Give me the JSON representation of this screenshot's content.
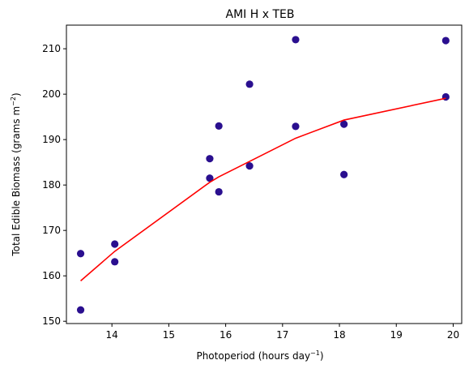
{
  "chart_data": {
    "type": "scatter",
    "title": "AMI H x TEB",
    "xlabel": "Photoperiod (hours day",
    "xlabel_sup": "−1",
    "xlabel_end": ")",
    "ylabel": "Total Edible Biomass (grams m",
    "ylabel_sup": "−2",
    "ylabel_end": ")",
    "xlim": [
      13.2,
      20.15
    ],
    "ylim": [
      149.5,
      215.2
    ],
    "xticks": [
      14,
      15,
      16,
      17,
      18,
      19,
      20
    ],
    "yticks": [
      150,
      160,
      170,
      180,
      190,
      200,
      210
    ],
    "points": [
      {
        "x": 13.45,
        "y": 164.9
      },
      {
        "x": 13.45,
        "y": 152.5
      },
      {
        "x": 14.05,
        "y": 167.0
      },
      {
        "x": 14.05,
        "y": 163.1
      },
      {
        "x": 15.72,
        "y": 185.8
      },
      {
        "x": 15.72,
        "y": 181.5
      },
      {
        "x": 15.88,
        "y": 193.0
      },
      {
        "x": 15.88,
        "y": 178.5
      },
      {
        "x": 16.42,
        "y": 202.2
      },
      {
        "x": 16.42,
        "y": 184.2
      },
      {
        "x": 17.23,
        "y": 212.0
      },
      {
        "x": 17.23,
        "y": 192.9
      },
      {
        "x": 18.08,
        "y": 193.4
      },
      {
        "x": 18.08,
        "y": 182.3
      },
      {
        "x": 19.87,
        "y": 211.8
      },
      {
        "x": 19.87,
        "y": 199.4
      }
    ],
    "fit_line": {
      "x": [
        13.45,
        14.05,
        15.72,
        15.88,
        16.42,
        17.23,
        18.08,
        19.87
      ],
      "y": [
        158.9,
        165.4,
        180.6,
        181.8,
        185.2,
        190.3,
        194.3,
        199.1
      ]
    },
    "colors": {
      "points": "#2a0f8f",
      "fit_line": "#ff0000",
      "axes": "#000000"
    },
    "grid": false
  }
}
